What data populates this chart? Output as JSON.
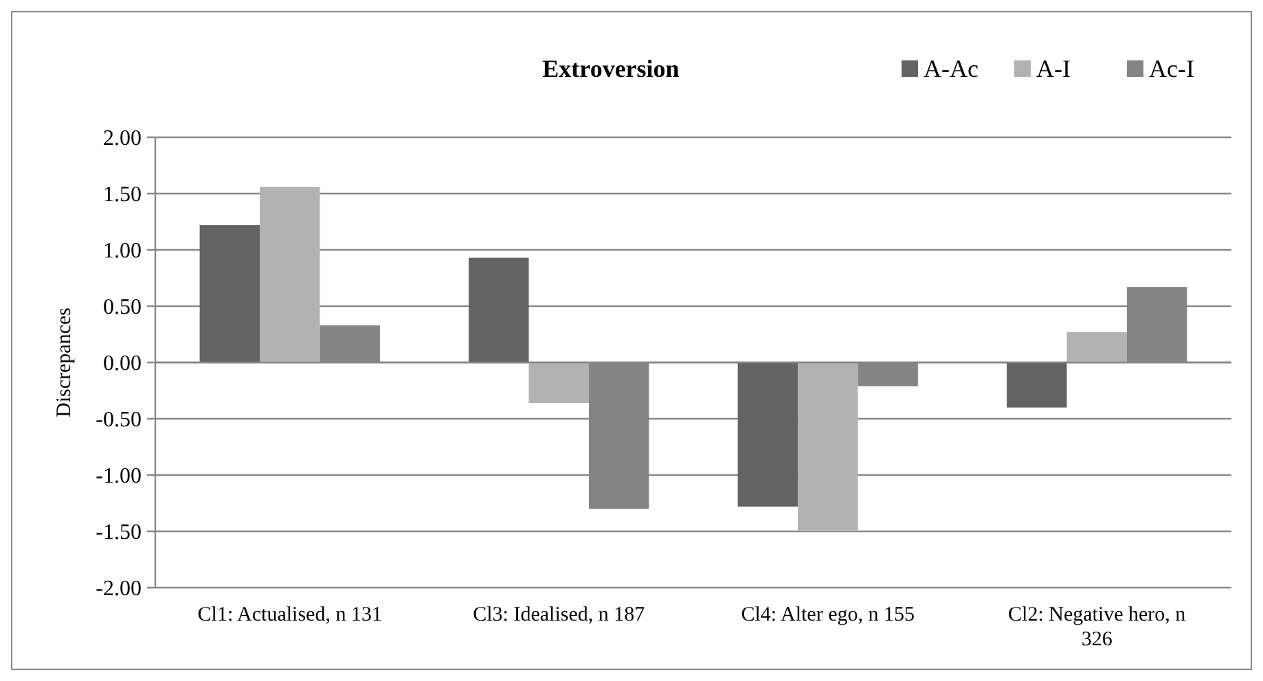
{
  "chart_data": {
    "type": "bar",
    "title": "Extroversion",
    "ylabel": "Discrepances",
    "categories": [
      "Cl1: Actualised, n 131",
      "Cl3: Idealised, n 187",
      "Cl4: Alter ego, n 155",
      "Cl2: Negative hero, n 326"
    ],
    "series": [
      {
        "name": "A-Ac",
        "color": "#636363",
        "values": [
          1.22,
          0.93,
          -1.28,
          -0.4
        ]
      },
      {
        "name": "A-I",
        "color": "#b2b2b2",
        "values": [
          1.56,
          -0.36,
          -1.49,
          0.27
        ]
      },
      {
        "name": "Ac-I",
        "color": "#848484",
        "values": [
          0.33,
          -1.3,
          -0.21,
          0.67
        ]
      }
    ],
    "ylim": [
      -2,
      2
    ],
    "yticks": [
      {
        "value": -2,
        "label": "-2.00"
      },
      {
        "value": -1.5,
        "label": "-1.50"
      },
      {
        "value": -1,
        "label": "-1.00"
      },
      {
        "value": -0.5,
        "label": "-0.50"
      },
      {
        "value": 0,
        "label": "0.00"
      },
      {
        "value": 0.5,
        "label": "0.50"
      },
      {
        "value": 1,
        "label": "1.00"
      },
      {
        "value": 1.5,
        "label": "1.50"
      },
      {
        "value": 2,
        "label": "2.00"
      }
    ],
    "grid": "y",
    "legend": "top right"
  }
}
